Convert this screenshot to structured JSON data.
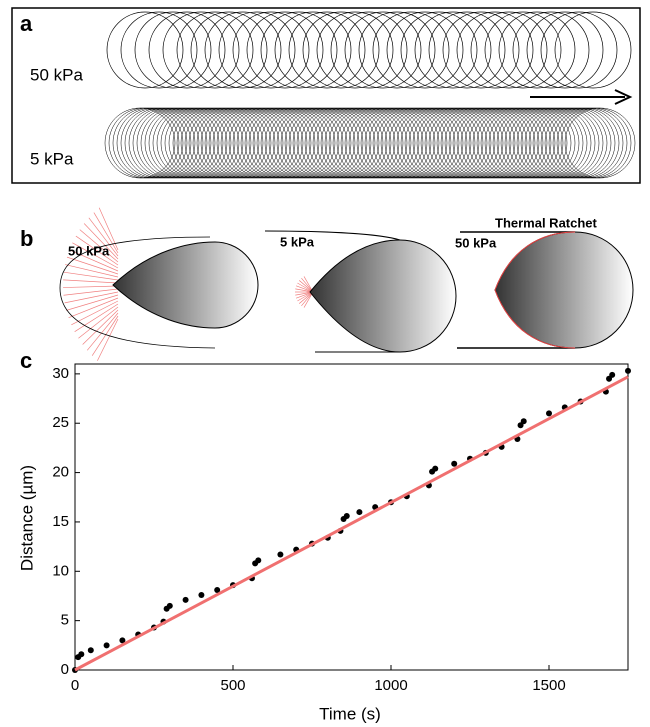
{
  "panel_a": {
    "label": "a",
    "top_label": "50 kPa",
    "bottom_label": "5 kPa"
  },
  "panel_b": {
    "label": "b",
    "cells": [
      {
        "label": "50 kPa"
      },
      {
        "label": "5 kPa"
      },
      {
        "label": "50 kPa",
        "title": "Thermal Ratchet"
      }
    ]
  },
  "panel_c": {
    "label": "c"
  },
  "chart_data": {
    "type": "scatter",
    "x_label": "Time (s)",
    "y_label": "Distance (µm)",
    "xlim": [
      0,
      1750
    ],
    "ylim": [
      0,
      31
    ],
    "xticks": [
      0,
      500,
      1000,
      1500
    ],
    "yticks": [
      0,
      5,
      10,
      15,
      20,
      25,
      30
    ],
    "series": [
      {
        "color": "#000000",
        "marker": "dot",
        "x": [
          0,
          10,
          20,
          50,
          100,
          150,
          200,
          250,
          280,
          290,
          300,
          350,
          400,
          450,
          500,
          560,
          570,
          580,
          650,
          700,
          750,
          800,
          840,
          850,
          860,
          900,
          950,
          1000,
          1050,
          1120,
          1130,
          1140,
          1200,
          1250,
          1300,
          1350,
          1400,
          1410,
          1420,
          1500,
          1550,
          1600,
          1680,
          1690,
          1700,
          1750
        ],
        "values": [
          0,
          1.3,
          1.6,
          2.0,
          2.5,
          3.0,
          3.6,
          4.3,
          4.9,
          6.2,
          6.5,
          7.1,
          7.6,
          8.1,
          8.6,
          9.3,
          10.8,
          11.1,
          11.7,
          12.2,
          12.8,
          13.4,
          14.1,
          15.3,
          15.6,
          16.0,
          16.5,
          17.0,
          17.6,
          18.7,
          20.1,
          20.4,
          20.9,
          21.4,
          22.0,
          22.6,
          23.4,
          24.8,
          25.2,
          26.0,
          26.6,
          27.2,
          28.2,
          29.5,
          29.9,
          30.3
        ]
      },
      {
        "color": "#f07070",
        "marker": "line",
        "x": [
          0,
          1750
        ],
        "values": [
          0,
          29.7
        ]
      }
    ]
  }
}
